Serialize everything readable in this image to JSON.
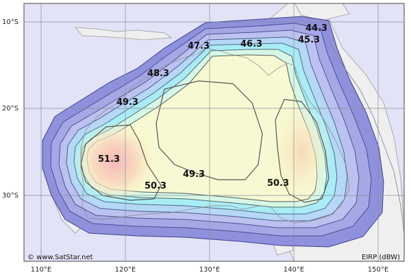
{
  "map": {
    "credit": "© www.SatStar.net",
    "legend_unit": "EIRP (dBW)",
    "lat_labels": [
      "10°S",
      "20°S",
      "30°S"
    ],
    "lon_labels": [
      "110°E",
      "120°E",
      "130°E",
      "140°E",
      "150°E"
    ],
    "contour_labels": [
      "44.3",
      "45.3",
      "46.3",
      "47.3",
      "48.3",
      "49.3",
      "51.3",
      "50.3",
      "49.3",
      "50.3"
    ],
    "colors": {
      "background": "#e3e3f7",
      "land": "#efefef",
      "outer_ring": "#8f91dc",
      "ring_2": "#a6a8e6",
      "ring_3": "#bcc2f0",
      "ring_4": "#b4d8f5",
      "ring_5": "#a9ecf6",
      "ring_6": "#d6f7e6",
      "center": "#fafac8",
      "peak": "#f8c6c0"
    }
  }
}
